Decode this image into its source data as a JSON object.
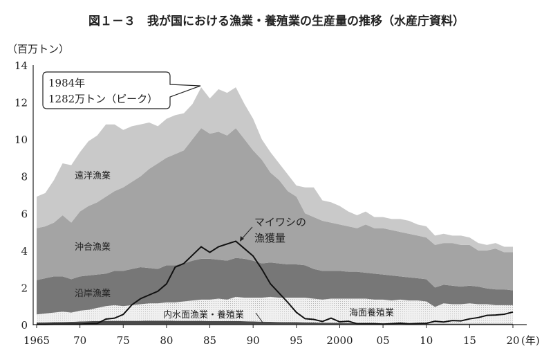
{
  "chart_data": {
    "type": "area",
    "title": "図１－３　我が国における漁業・養殖業の生産量の推移（水産庁資料）",
    "ylabel": "（百万トン）",
    "xlabel_suffix": "(年)",
    "ylim": [
      0,
      14
    ],
    "yticks": [
      "0",
      "2",
      "4",
      "6",
      "8",
      "10",
      "12",
      "14"
    ],
    "xlim": [
      1965,
      2020
    ],
    "xtick_years": [
      1965,
      1970,
      1975,
      1980,
      1985,
      1990,
      1995,
      2000,
      2005,
      2010,
      2015,
      2020
    ],
    "xtick_labels": [
      "1965",
      "70",
      "75",
      "80",
      "85",
      "90",
      "95",
      "2000",
      "05",
      "10",
      "15",
      "20"
    ],
    "grid": false,
    "stacked": true,
    "x": [
      1965,
      1966,
      1967,
      1968,
      1969,
      1970,
      1971,
      1972,
      1973,
      1974,
      1975,
      1976,
      1977,
      1978,
      1979,
      1980,
      1981,
      1982,
      1983,
      1984,
      1985,
      1986,
      1987,
      1988,
      1989,
      1990,
      1991,
      1992,
      1993,
      1994,
      1995,
      1996,
      1997,
      1998,
      1999,
      2000,
      2001,
      2002,
      2003,
      2004,
      2005,
      2006,
      2007,
      2008,
      2009,
      2010,
      2011,
      2012,
      2013,
      2014,
      2015,
      2016,
      2017,
      2018,
      2019,
      2020
    ],
    "series": [
      {
        "name": "内水面漁業・養殖業",
        "color": "#4a4a4a",
        "values": [
          0.11,
          0.12,
          0.13,
          0.14,
          0.15,
          0.17,
          0.18,
          0.19,
          0.2,
          0.2,
          0.2,
          0.2,
          0.2,
          0.21,
          0.21,
          0.21,
          0.2,
          0.2,
          0.2,
          0.2,
          0.19,
          0.19,
          0.19,
          0.19,
          0.18,
          0.17,
          0.16,
          0.15,
          0.14,
          0.13,
          0.13,
          0.12,
          0.11,
          0.1,
          0.1,
          0.09,
          0.08,
          0.08,
          0.07,
          0.07,
          0.07,
          0.06,
          0.06,
          0.06,
          0.05,
          0.05,
          0.05,
          0.05,
          0.05,
          0.05,
          0.05,
          0.05,
          0.05,
          0.05,
          0.05,
          0.05
        ]
      },
      {
        "name": "海面養殖業",
        "color": "#eeeeee",
        "values": [
          0.44,
          0.48,
          0.52,
          0.56,
          0.5,
          0.58,
          0.62,
          0.71,
          0.8,
          0.85,
          0.8,
          0.85,
          0.9,
          0.94,
          0.94,
          0.99,
          1.0,
          1.05,
          1.1,
          1.15,
          1.16,
          1.21,
          1.16,
          1.31,
          1.27,
          1.28,
          1.29,
          1.35,
          1.31,
          1.32,
          1.32,
          1.33,
          1.29,
          1.25,
          1.3,
          1.31,
          1.32,
          1.32,
          1.33,
          1.28,
          1.28,
          1.24,
          1.29,
          1.24,
          1.25,
          1.2,
          0.9,
          1.1,
          1.05,
          1.05,
          1.1,
          1.05,
          1.05,
          1.0,
          1.0,
          1.0
        ]
      },
      {
        "name": "沿岸漁業",
        "color": "#777777",
        "values": [
          1.85,
          1.9,
          1.95,
          1.9,
          1.8,
          1.85,
          1.85,
          1.8,
          1.75,
          1.85,
          1.9,
          1.95,
          2.0,
          1.9,
          1.85,
          2.0,
          2.0,
          2.05,
          2.15,
          2.2,
          2.2,
          2.1,
          2.1,
          2.1,
          2.1,
          2.0,
          1.85,
          1.85,
          1.85,
          1.8,
          1.8,
          1.75,
          1.6,
          1.55,
          1.5,
          1.5,
          1.45,
          1.45,
          1.4,
          1.4,
          1.35,
          1.35,
          1.25,
          1.25,
          1.2,
          1.2,
          1.05,
          1.0,
          1.0,
          0.95,
          0.95,
          0.95,
          0.85,
          0.85,
          0.85,
          0.8
        ]
      },
      {
        "name": "沖合漁業",
        "color": "#a4a4a4",
        "values": [
          2.8,
          2.8,
          2.9,
          3.3,
          3.05,
          3.5,
          3.75,
          3.9,
          4.15,
          4.3,
          4.5,
          4.7,
          4.9,
          5.35,
          5.7,
          5.8,
          6.0,
          6.1,
          6.55,
          7.05,
          6.75,
          6.9,
          6.75,
          7.0,
          6.45,
          5.95,
          5.6,
          4.85,
          4.5,
          3.95,
          3.65,
          2.8,
          2.8,
          2.7,
          2.6,
          2.5,
          2.45,
          2.35,
          2.6,
          2.45,
          2.5,
          2.45,
          2.4,
          2.35,
          2.3,
          2.25,
          2.3,
          2.25,
          2.3,
          2.25,
          2.2,
          1.95,
          2.05,
          2.2,
          2.0,
          2.05
        ]
      },
      {
        "name": "遠洋漁業",
        "color": "#c9c9c9",
        "values": [
          1.7,
          1.8,
          2.3,
          2.8,
          3.1,
          3.2,
          3.5,
          3.6,
          3.9,
          3.6,
          3.1,
          3.0,
          2.8,
          2.5,
          2.0,
          2.1,
          2.1,
          2.0,
          1.9,
          2.2,
          1.9,
          2.3,
          2.3,
          2.2,
          1.9,
          1.7,
          1.1,
          1.1,
          0.9,
          0.9,
          0.6,
          1.4,
          1.6,
          1.1,
          1.1,
          1.0,
          0.8,
          0.7,
          0.7,
          0.6,
          0.6,
          0.6,
          0.7,
          0.7,
          0.6,
          0.6,
          0.5,
          0.5,
          0.4,
          0.5,
          0.4,
          0.4,
          0.3,
          0.3,
          0.3,
          0.3
        ]
      }
    ],
    "line_series": {
      "name": "マイワシの漁獲量",
      "color": "#111111",
      "values": [
        0.01,
        0.01,
        0.02,
        0.02,
        0.02,
        0.02,
        0.05,
        0.06,
        0.3,
        0.35,
        0.55,
        1.07,
        1.4,
        1.6,
        1.8,
        2.2,
        3.1,
        3.3,
        3.75,
        4.2,
        3.9,
        4.2,
        4.35,
        4.5,
        4.1,
        3.7,
        3.0,
        2.2,
        1.7,
        1.2,
        0.66,
        0.32,
        0.28,
        0.17,
        0.35,
        0.15,
        0.18,
        0.05,
        0.05,
        0.05,
        0.03,
        0.05,
        0.08,
        0.04,
        0.06,
        0.07,
        0.18,
        0.14,
        0.22,
        0.2,
        0.31,
        0.38,
        0.5,
        0.52,
        0.56,
        0.68
      ]
    },
    "annotations": {
      "peak_line1": "1984年",
      "peak_line2": "1282万トン（ピーク）",
      "sardine_line1": "マイワシの",
      "sardine_line2": "漁獲量",
      "distant": "遠洋漁業",
      "offshore": "沖合漁業",
      "coastal": "沿岸漁業",
      "inland": "内水面漁業・養殖業",
      "marine_aquaculture": "海面養殖業"
    }
  }
}
